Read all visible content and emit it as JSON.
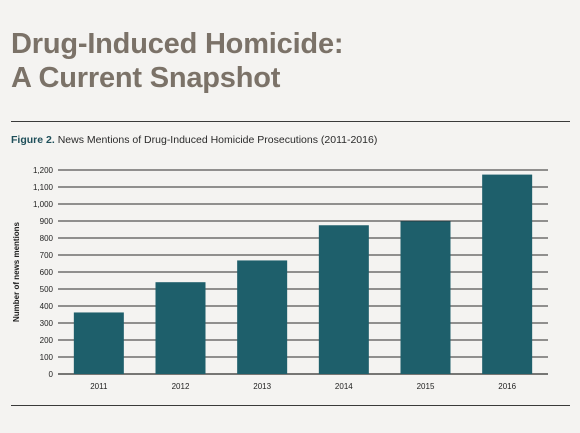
{
  "page": {
    "heading_line1": "Drug-Induced Homicide:",
    "heading_line2": "A Current Snapshot",
    "figure_label": "Figure 2.",
    "figure_caption": "News Mentions of Drug-Induced Homicide Prosecutions (2011-2016)"
  },
  "colors": {
    "bar": "#1e5f6b",
    "heading": "#7b7268",
    "gridline": "#2b2b2b"
  },
  "chart_data": {
    "type": "bar",
    "title": "News Mentions of Drug-Induced Homicide Prosecutions (2011-2016)",
    "xlabel": "",
    "ylabel": "Number of news mentions",
    "categories": [
      "2011",
      "2012",
      "2013",
      "2014",
      "2015",
      "2016"
    ],
    "values": [
      362,
      540,
      668,
      875,
      898,
      1173
    ],
    "ylim": [
      0,
      1200
    ],
    "yticks": [
      0,
      100,
      200,
      300,
      400,
      500,
      600,
      700,
      800,
      900,
      1000,
      1100,
      1200
    ],
    "ytick_labels": [
      "0",
      "100",
      "200",
      "300",
      "400",
      "500",
      "600",
      "700",
      "800",
      "900",
      "1,000",
      "1,100",
      "1,200"
    ],
    "grid": true,
    "legend": "none"
  }
}
